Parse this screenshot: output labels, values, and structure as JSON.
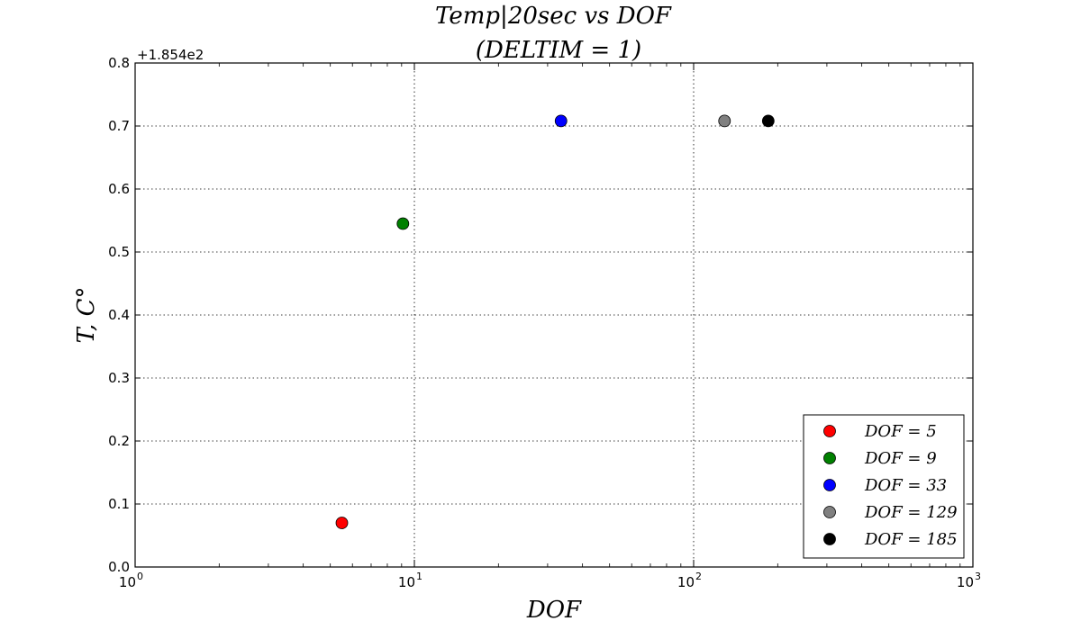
{
  "chart_data": {
    "type": "scatter",
    "title": "Temp|20sec vs DOF",
    "subtitle": "(DELTIM = 1)",
    "xlabel": "DOF",
    "ylabel": "T, C°",
    "x_scale": "log",
    "xlim": [
      1,
      1000
    ],
    "ylim": [
      0.0,
      0.8
    ],
    "y_offset_label": "+1.854e2",
    "grid": true,
    "legend_position": "lower-right",
    "x_ticks": [
      {
        "base": "10",
        "exp": "0",
        "value": 1
      },
      {
        "base": "10",
        "exp": "1",
        "value": 10
      },
      {
        "base": "10",
        "exp": "2",
        "value": 100
      },
      {
        "base": "10",
        "exp": "3",
        "value": 1000
      }
    ],
    "y_ticks": [
      "0.0",
      "0.1",
      "0.2",
      "0.3",
      "0.4",
      "0.5",
      "0.6",
      "0.7",
      "0.8"
    ],
    "series": [
      {
        "name": "DOF = 5",
        "color": "#ff0000",
        "x": 5.5,
        "y": 0.07
      },
      {
        "name": "DOF = 9",
        "color": "#008000",
        "x": 9.1,
        "y": 0.545
      },
      {
        "name": "DOF = 33",
        "color": "#0000ff",
        "x": 33.5,
        "y": 0.708
      },
      {
        "name": "DOF = 129",
        "color": "#808080",
        "x": 129,
        "y": 0.708
      },
      {
        "name": "DOF = 185",
        "color": "#000000",
        "x": 185,
        "y": 0.708
      }
    ]
  }
}
